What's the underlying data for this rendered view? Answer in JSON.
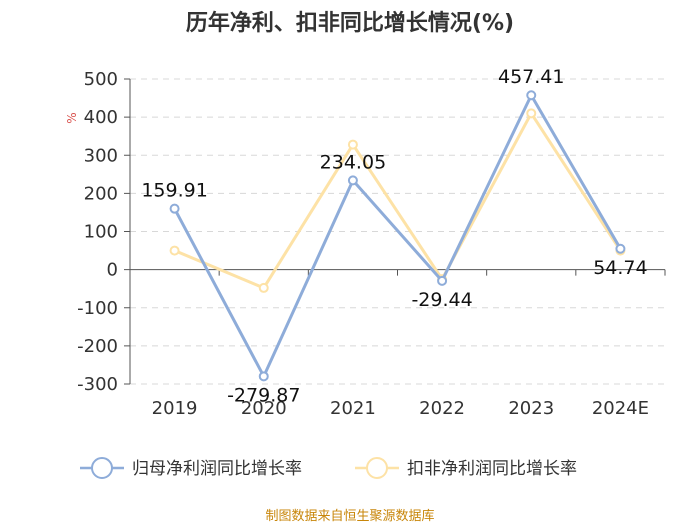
{
  "chart_data": {
    "type": "line",
    "title": "历年净利、扣非同比增长情况(%)",
    "ylabel": "%",
    "ylim": [
      -300,
      500
    ],
    "yticks": [
      500,
      400,
      300,
      200,
      100,
      0,
      -100,
      -200,
      -300
    ],
    "grid": true,
    "legend_position": "bottom",
    "categories": [
      "2019",
      "2020",
      "2021",
      "2022",
      "2023",
      "2024E"
    ],
    "series": [
      {
        "name": "归母净利润同比增长率",
        "color": "#8eacd9",
        "values": [
          159.91,
          -279.87,
          234.05,
          -29.44,
          457.41,
          54.74
        ],
        "labels": [
          "159.91",
          "-279.87",
          "234.05",
          "-29.44",
          "457.41",
          "54.74"
        ]
      },
      {
        "name": "扣非净利润同比增长率",
        "color": "#fde2a6",
        "values": [
          50,
          -48,
          328,
          -25,
          410,
          50
        ]
      }
    ]
  },
  "source_note": "制图数据来自恒生聚源数据库"
}
